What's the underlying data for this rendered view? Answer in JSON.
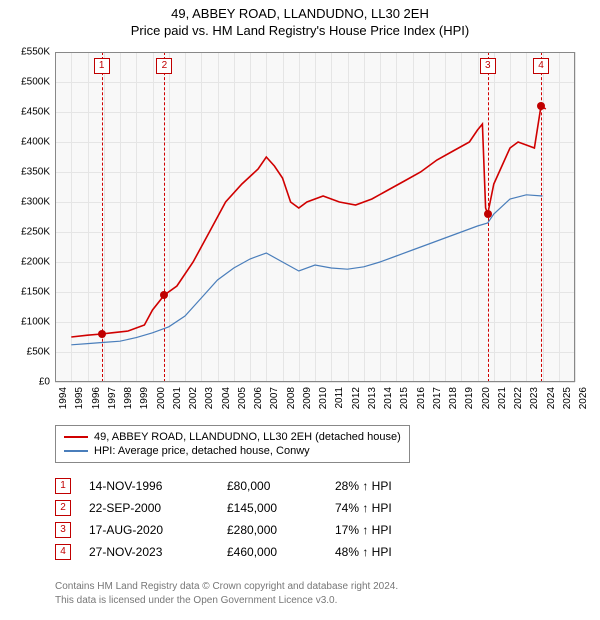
{
  "title": {
    "line1": "49, ABBEY ROAD, LLANDUDNO, LL30 2EH",
    "line2": "Price paid vs. HM Land Registry's House Price Index (HPI)"
  },
  "chart": {
    "type": "line",
    "background_color": "#f8f8f8",
    "grid_color": "#e5e5e5",
    "axis_border_color": "#888888",
    "x": {
      "min": 1994,
      "max": 2026,
      "ticks": [
        1994,
        1995,
        1996,
        1997,
        1998,
        1999,
        2000,
        2001,
        2002,
        2003,
        2004,
        2005,
        2006,
        2007,
        2008,
        2009,
        2010,
        2011,
        2012,
        2013,
        2014,
        2015,
        2016,
        2017,
        2018,
        2019,
        2020,
        2021,
        2022,
        2023,
        2024,
        2025,
        2026
      ]
    },
    "y": {
      "min": 0,
      "max": 550000,
      "tick_step": 50000,
      "tick_labels": [
        "£0",
        "£50K",
        "£100K",
        "£150K",
        "£200K",
        "£250K",
        "£300K",
        "£350K",
        "£400K",
        "£450K",
        "£500K",
        "£550K"
      ]
    },
    "series": [
      {
        "name": "49, ABBEY ROAD, LLANDUDNO, LL30 2EH (detached house)",
        "color": "#d00000",
        "width": 1.6,
        "points": [
          [
            1995.0,
            75000
          ],
          [
            1996.0,
            78000
          ],
          [
            1996.87,
            80000
          ],
          [
            1997.5,
            82000
          ],
          [
            1998.5,
            85000
          ],
          [
            1999.5,
            95000
          ],
          [
            2000.0,
            120000
          ],
          [
            2000.73,
            145000
          ],
          [
            2001.5,
            160000
          ],
          [
            2002.5,
            200000
          ],
          [
            2003.5,
            250000
          ],
          [
            2004.5,
            300000
          ],
          [
            2005.5,
            330000
          ],
          [
            2006.5,
            355000
          ],
          [
            2007.0,
            375000
          ],
          [
            2007.5,
            360000
          ],
          [
            2008.0,
            340000
          ],
          [
            2008.5,
            300000
          ],
          [
            2009.0,
            290000
          ],
          [
            2009.5,
            300000
          ],
          [
            2010.5,
            310000
          ],
          [
            2011.5,
            300000
          ],
          [
            2012.5,
            295000
          ],
          [
            2013.5,
            305000
          ],
          [
            2014.5,
            320000
          ],
          [
            2015.5,
            335000
          ],
          [
            2016.5,
            350000
          ],
          [
            2017.5,
            370000
          ],
          [
            2018.5,
            385000
          ],
          [
            2019.5,
            400000
          ],
          [
            2020.0,
            420000
          ],
          [
            2020.3,
            430000
          ],
          [
            2020.5,
            290000
          ],
          [
            2020.63,
            280000
          ],
          [
            2021.0,
            330000
          ],
          [
            2021.5,
            360000
          ],
          [
            2022.0,
            390000
          ],
          [
            2022.5,
            400000
          ],
          [
            2023.0,
            395000
          ],
          [
            2023.5,
            390000
          ],
          [
            2023.91,
            460000
          ],
          [
            2024.2,
            455000
          ]
        ]
      },
      {
        "name": "HPI: Average price, detached house, Conwy",
        "color": "#4a7ebb",
        "width": 1.2,
        "points": [
          [
            1995.0,
            62000
          ],
          [
            1996.0,
            64000
          ],
          [
            1997.0,
            66000
          ],
          [
            1998.0,
            68000
          ],
          [
            1999.0,
            74000
          ],
          [
            2000.0,
            82000
          ],
          [
            2001.0,
            92000
          ],
          [
            2002.0,
            110000
          ],
          [
            2003.0,
            140000
          ],
          [
            2004.0,
            170000
          ],
          [
            2005.0,
            190000
          ],
          [
            2006.0,
            205000
          ],
          [
            2007.0,
            215000
          ],
          [
            2008.0,
            200000
          ],
          [
            2009.0,
            185000
          ],
          [
            2010.0,
            195000
          ],
          [
            2011.0,
            190000
          ],
          [
            2012.0,
            188000
          ],
          [
            2013.0,
            192000
          ],
          [
            2014.0,
            200000
          ],
          [
            2015.0,
            210000
          ],
          [
            2016.0,
            220000
          ],
          [
            2017.0,
            230000
          ],
          [
            2018.0,
            240000
          ],
          [
            2019.0,
            250000
          ],
          [
            2020.0,
            260000
          ],
          [
            2020.63,
            265000
          ],
          [
            2021.0,
            280000
          ],
          [
            2022.0,
            305000
          ],
          [
            2023.0,
            312000
          ],
          [
            2024.0,
            310000
          ]
        ]
      }
    ],
    "sale_markers": {
      "vline_color": "#d00000",
      "border_color": "#c00000",
      "dot_color": "#c00000",
      "entries": [
        {
          "n": "1",
          "year": 1996.87,
          "price": 80000
        },
        {
          "n": "2",
          "year": 2000.73,
          "price": 145000
        },
        {
          "n": "3",
          "year": 2020.63,
          "price": 280000
        },
        {
          "n": "4",
          "year": 2023.91,
          "price": 460000
        }
      ]
    }
  },
  "legend": {
    "rows": [
      {
        "label": "49, ABBEY ROAD, LLANDUDNO, LL30 2EH (detached house)",
        "color": "#d00000"
      },
      {
        "label": "HPI: Average price, detached house, Conwy",
        "color": "#4a7ebb"
      }
    ]
  },
  "sales_table": {
    "hpi_suffix": "↑ HPI",
    "rows": [
      {
        "n": "1",
        "date": "14-NOV-1996",
        "price": "£80,000",
        "pct": "28%"
      },
      {
        "n": "2",
        "date": "22-SEP-2000",
        "price": "£145,000",
        "pct": "74%"
      },
      {
        "n": "3",
        "date": "17-AUG-2020",
        "price": "£280,000",
        "pct": "17%"
      },
      {
        "n": "4",
        "date": "27-NOV-2023",
        "price": "£460,000",
        "pct": "48%"
      }
    ]
  },
  "footer": {
    "line1": "Contains HM Land Registry data © Crown copyright and database right 2024.",
    "line2": "This data is licensed under the Open Government Licence v3.0."
  }
}
